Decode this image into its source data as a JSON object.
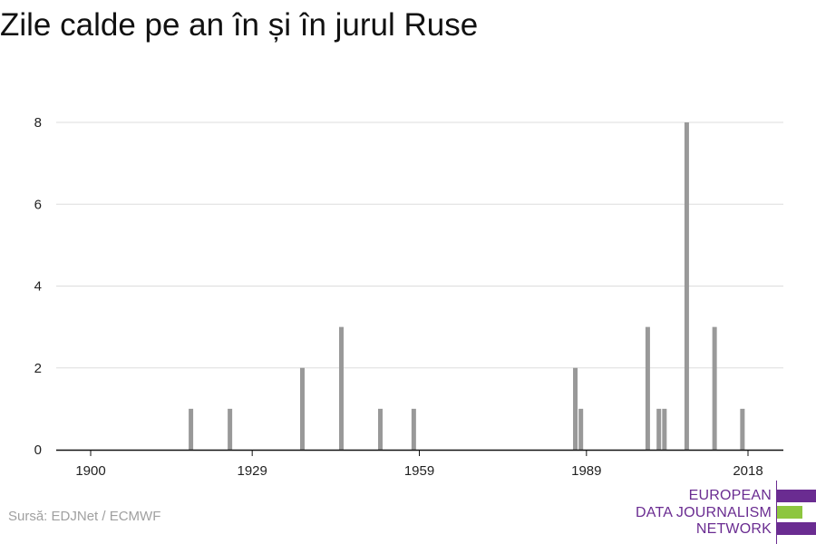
{
  "title": "Zile calde pe an în și în jurul Ruse",
  "source": "Sursă: EDJNet / ECMWF",
  "logo": {
    "lines": [
      "EUROPEAN",
      "DATA JOURNALISM",
      "NETWORK"
    ],
    "colors": {
      "purple": "#6a2c91",
      "green": "#8dc63f"
    }
  },
  "chart_data": {
    "type": "bar",
    "title": "Zile calde pe an în și în jurul Ruse",
    "xlabel": "",
    "ylabel": "",
    "xlim": [
      1900,
      2018
    ],
    "ylim": [
      0,
      8
    ],
    "x_ticks": [
      1900,
      1929,
      1959,
      1989,
      2018
    ],
    "y_ticks": [
      0,
      2,
      4,
      6,
      8
    ],
    "grid": true,
    "bar_color": "#999999",
    "points": [
      {
        "x": 1918,
        "y": 1
      },
      {
        "x": 1925,
        "y": 1
      },
      {
        "x": 1938,
        "y": 2
      },
      {
        "x": 1945,
        "y": 3
      },
      {
        "x": 1952,
        "y": 1
      },
      {
        "x": 1958,
        "y": 1
      },
      {
        "x": 1987,
        "y": 2
      },
      {
        "x": 1988,
        "y": 1
      },
      {
        "x": 2000,
        "y": 3
      },
      {
        "x": 2002,
        "y": 1
      },
      {
        "x": 2003,
        "y": 1
      },
      {
        "x": 2007,
        "y": 8
      },
      {
        "x": 2012,
        "y": 3
      },
      {
        "x": 2017,
        "y": 1
      }
    ]
  }
}
